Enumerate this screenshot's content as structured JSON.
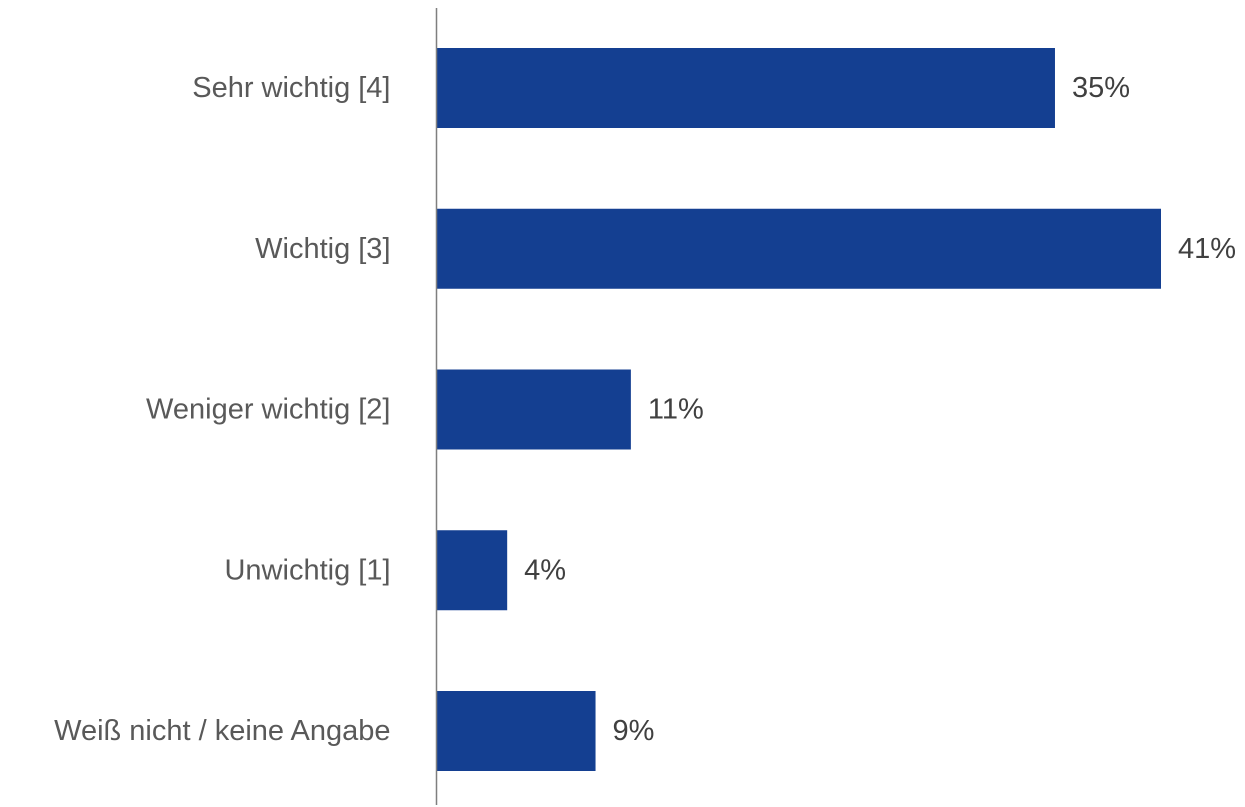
{
  "chart_data": {
    "type": "bar",
    "orientation": "horizontal",
    "categories": [
      "Sehr wichtig [4]",
      "Wichtig [3]",
      "Weniger wichtig [2]",
      "Unwichtig [1]",
      "Weiß nicht / keine Angabe"
    ],
    "values": [
      35,
      41,
      11,
      4,
      9
    ],
    "value_labels": [
      "35%",
      "41%",
      "11%",
      "4%",
      "9%"
    ],
    "unit": "%",
    "xlim": [
      0,
      41
    ],
    "grid": false,
    "legend": "none",
    "bar_color": "#143f91"
  }
}
